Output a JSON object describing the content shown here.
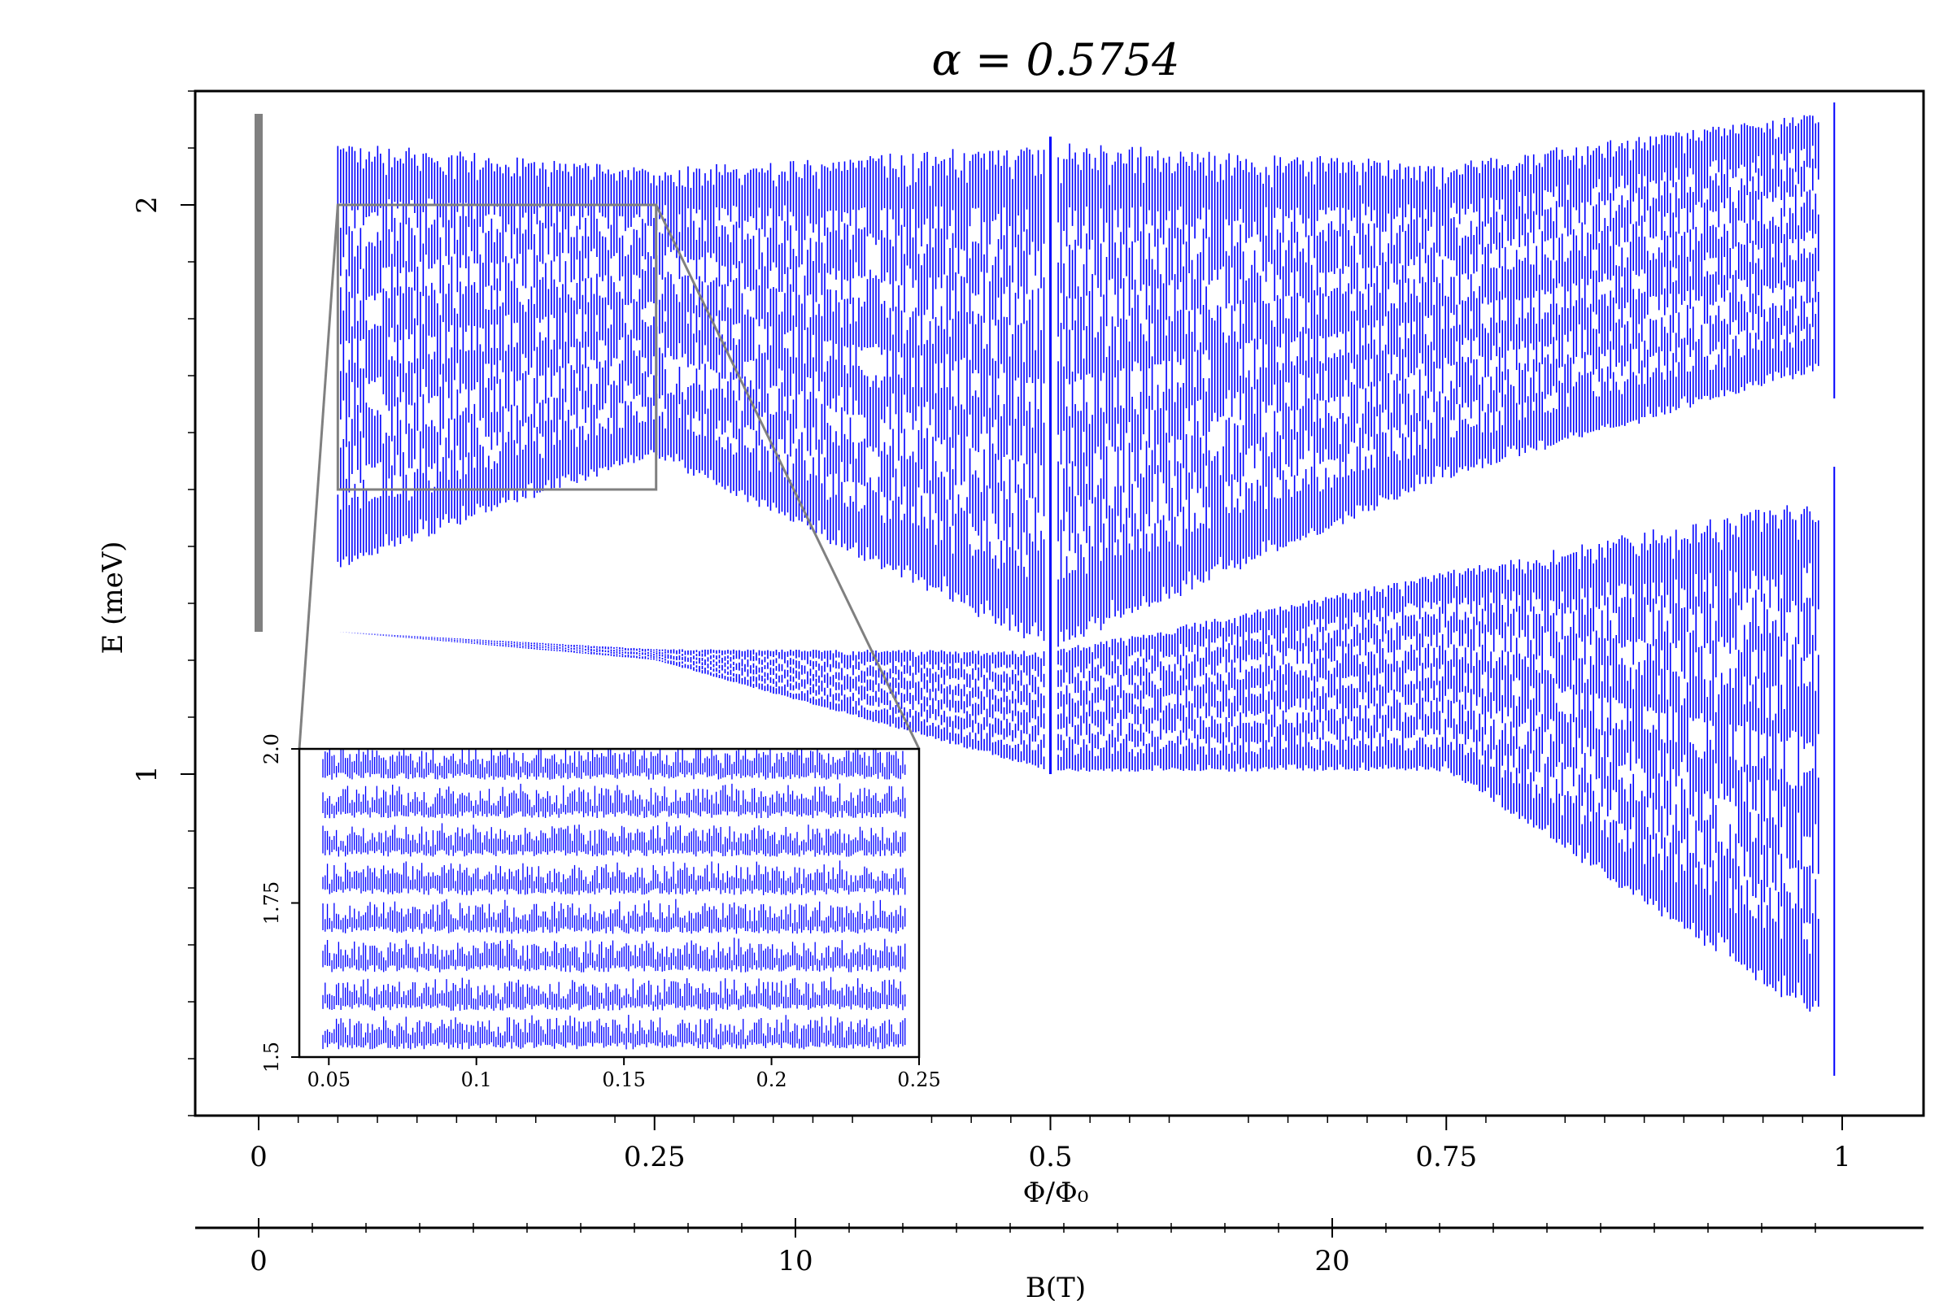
{
  "chart_data": {
    "type": "scatter",
    "title": "α = 0.5754",
    "ylabel": "E (meV)",
    "xlabel": "Φ/Φ₀",
    "xlabel_secondary": "B(T)",
    "xlim": [
      0,
      1
    ],
    "ylim": [
      0.4,
      2.2
    ],
    "x_ticks": [
      {
        "v": 0,
        "label": "0"
      },
      {
        "v": 0.25,
        "label": "0.25"
      },
      {
        "v": 0.5,
        "label": "0.5"
      },
      {
        "v": 0.75,
        "label": "0.75"
      },
      {
        "v": 1,
        "label": "1"
      }
    ],
    "y_ticks": [
      {
        "v": 1,
        "label": "1"
      },
      {
        "v": 2,
        "label": "2"
      }
    ],
    "b_ticks": [
      {
        "v": 0,
        "label": "0"
      },
      {
        "v": 10,
        "label": "10"
      },
      {
        "v": 20,
        "label": "20"
      }
    ],
    "b_range": [
      0,
      29.5
    ],
    "grid": false,
    "series_color": "#0000ff",
    "scale_bar": {
      "x": 0,
      "y_range": [
        1.25,
        2.16
      ],
      "color": "#808080"
    },
    "bands": [
      {
        "name": "lower",
        "x_range": [
          0.05,
          0.985
        ],
        "y_bottom_edge": [
          [
            0.05,
            1.25
          ],
          [
            0.25,
            1.2
          ],
          [
            0.5,
            1.0
          ],
          [
            0.75,
            1.0
          ],
          [
            0.985,
            0.55
          ]
        ],
        "y_top_edge": [
          [
            0.05,
            1.25
          ],
          [
            0.25,
            1.22
          ],
          [
            0.5,
            1.22
          ],
          [
            0.75,
            1.36
          ],
          [
            0.985,
            1.5
          ]
        ]
      },
      {
        "name": "upper",
        "x_range": [
          0.05,
          0.985
        ],
        "y_bottom_edge": [
          [
            0.05,
            1.35
          ],
          [
            0.25,
            1.55
          ],
          [
            0.5,
            1.2
          ],
          [
            0.75,
            1.51
          ],
          [
            0.985,
            1.7
          ]
        ],
        "y_top_edge": [
          [
            0.05,
            2.12
          ],
          [
            0.25,
            2.07
          ],
          [
            0.5,
            2.12
          ],
          [
            0.75,
            2.08
          ],
          [
            0.985,
            2.17
          ]
        ]
      }
    ],
    "inset": {
      "x_range": [
        0.04,
        0.25
      ],
      "y_range": [
        1.5,
        2.0
      ],
      "x_ticks": [
        {
          "v": 0.05,
          "label": "0.05"
        },
        {
          "v": 0.1,
          "label": "0.1"
        },
        {
          "v": 0.15,
          "label": "0.15"
        },
        {
          "v": 0.2,
          "label": "0.2"
        },
        {
          "v": 0.25,
          "label": "0.25"
        }
      ],
      "y_ticks": [
        {
          "v": 1.5,
          "label": "1.5"
        },
        {
          "v": 1.75,
          "label": "1.75"
        },
        {
          "v": 2.0,
          "label": "2.0"
        }
      ],
      "zoom_box": {
        "x_range": [
          0.04,
          0.25
        ],
        "y_range": [
          1.5,
          2.0
        ]
      }
    }
  }
}
